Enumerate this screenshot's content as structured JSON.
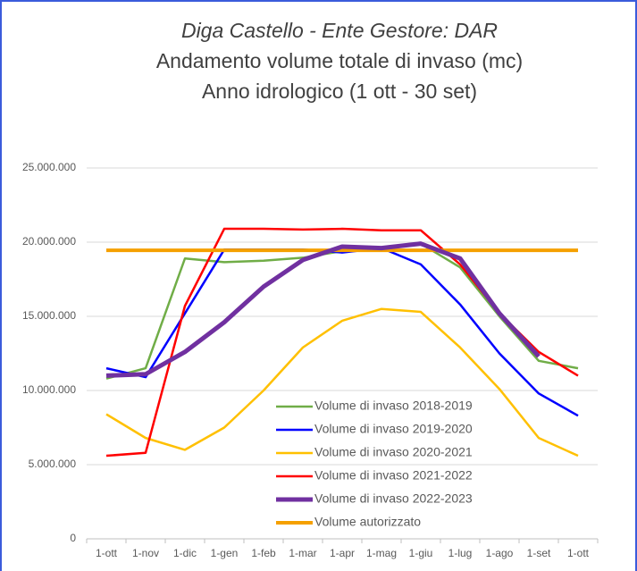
{
  "chart_data": {
    "type": "line",
    "title": "Diga Castello - Ente Gestore: DAR",
    "subtitle": [
      "Andamento volume totale di invaso (mc)",
      "Anno idrologico (1 ott - 30 set)"
    ],
    "categories": [
      "1-ott",
      "1-nov",
      "1-dic",
      "1-gen",
      "1-feb",
      "1-mar",
      "1-apr",
      "1-mag",
      "1-giu",
      "1-lug",
      "1-ago",
      "1-set",
      "1-ott"
    ],
    "series": [
      {
        "name": "Volume di invaso 2018-2019",
        "color": "#70ad47",
        "width": 2.5,
        "values": [
          10800000,
          11500000,
          18900000,
          18650000,
          18750000,
          18950000,
          19400000,
          19600000,
          19900000,
          18300000,
          15000000,
          12000000,
          11500000
        ]
      },
      {
        "name": "Volume di invaso 2019-2020",
        "color": "#0000ff",
        "width": 2.5,
        "values": [
          11500000,
          10900000,
          15200000,
          19500000,
          19500000,
          19500000,
          19300000,
          19600000,
          18500000,
          15800000,
          12500000,
          9800000,
          8300000
        ]
      },
      {
        "name": "Volume di invaso 2020-2021",
        "color": "#ffc000",
        "width": 2.5,
        "values": [
          8400000,
          6800000,
          6000000,
          7500000,
          10000000,
          12900000,
          14700000,
          15500000,
          15300000,
          12900000,
          10100000,
          6800000,
          5600000
        ]
      },
      {
        "name": "Volume di invaso 2021-2022",
        "color": "#ff0000",
        "width": 2.5,
        "values": [
          5600000,
          5800000,
          15700000,
          20900000,
          20900000,
          20850000,
          20900000,
          20800000,
          20800000,
          18500000,
          15200000,
          12600000,
          11000000
        ]
      },
      {
        "name": "Volume di invaso 2022-2023",
        "color": "#7030a0",
        "width": 5,
        "values": [
          11000000,
          11100000,
          12600000,
          14600000,
          17000000,
          18800000,
          19700000,
          19600000,
          19900000,
          18900000,
          15200000,
          12300000,
          null
        ]
      },
      {
        "name": "Volume autorizzato",
        "color": "#f5a000",
        "width": 4,
        "values": [
          19450000,
          19450000,
          19450000,
          19450000,
          19450000,
          19450000,
          19450000,
          19450000,
          19450000,
          19450000,
          19450000,
          19450000,
          19450000
        ]
      }
    ],
    "ylim": [
      0,
      25000000
    ],
    "yticks": [
      0,
      {
        "value": 5000000,
        "label": "5.000.000"
      },
      {
        "value": 10000000,
        "label": "10.000.000"
      },
      {
        "value": 15000000,
        "label": "15.000.000"
      },
      {
        "value": 20000000,
        "label": "20.000.000"
      },
      {
        "value": 25000000,
        "label": "25.000.000"
      }
    ],
    "grid": true
  }
}
